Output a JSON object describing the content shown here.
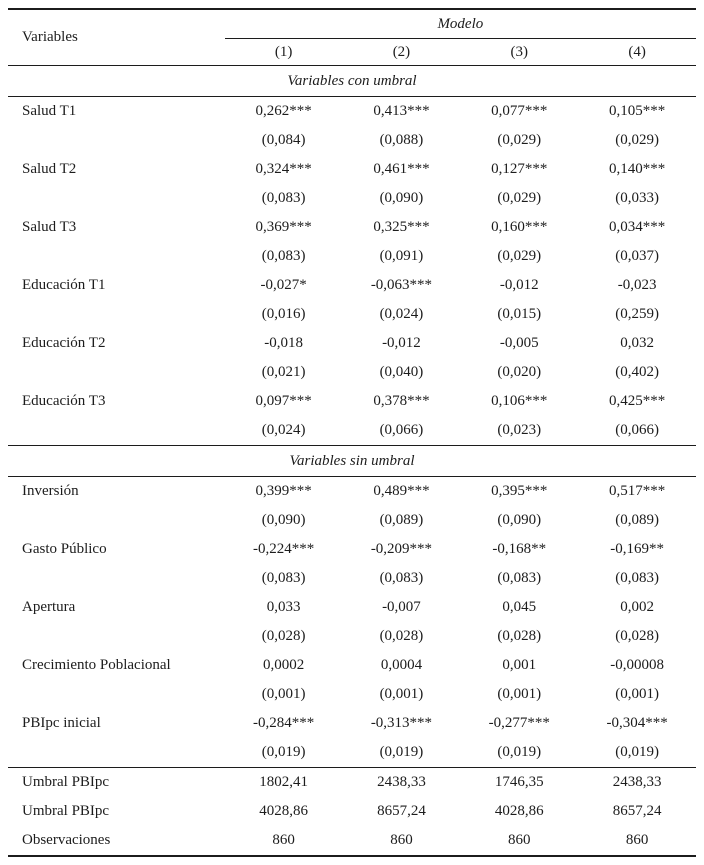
{
  "table": {
    "header": {
      "variables_label": "Variables",
      "modelo_label": "Modelo",
      "model_columns": [
        "(1)",
        "(2)",
        "(3)",
        "(4)"
      ]
    },
    "sections": [
      {
        "title": "Variables con umbral",
        "rows": [
          {
            "label": "Salud T1",
            "coef": [
              "0,262***",
              "0,413***",
              "0,077***",
              "0,105***"
            ],
            "se": [
              "(0,084)",
              "(0,088)",
              "(0,029)",
              "(0,029)"
            ]
          },
          {
            "label": "Salud T2",
            "coef": [
              "0,324***",
              "0,461***",
              "0,127***",
              "0,140***"
            ],
            "se": [
              "(0,083)",
              "(0,090)",
              "(0,029)",
              "(0,033)"
            ]
          },
          {
            "label": "Salud T3",
            "coef": [
              "0,369***",
              "0,325***",
              "0,160***",
              "0,034***"
            ],
            "se": [
              "(0,083)",
              "(0,091)",
              "(0,029)",
              "(0,037)"
            ]
          },
          {
            "label": "Educación T1",
            "coef": [
              "-0,027*",
              "-0,063***",
              "-0,012",
              "-0,023"
            ],
            "se": [
              "(0,016)",
              "(0,024)",
              "(0,015)",
              "(0,259)"
            ]
          },
          {
            "label": "Educación T2",
            "coef": [
              "-0,018",
              "-0,012",
              "-0,005",
              "0,032"
            ],
            "se": [
              "(0,021)",
              "(0,040)",
              "(0,020)",
              "(0,402)"
            ]
          },
          {
            "label": "Educación T3",
            "coef": [
              "0,097***",
              "0,378***",
              "0,106***",
              "0,425***"
            ],
            "se": [
              "(0,024)",
              "(0,066)",
              "(0,023)",
              "(0,066)"
            ]
          }
        ]
      },
      {
        "title": "Variables sin umbral",
        "rows": [
          {
            "label": "Inversión",
            "coef": [
              "0,399***",
              "0,489***",
              "0,395***",
              "0,517***"
            ],
            "se": [
              "(0,090)",
              "(0,089)",
              "(0,090)",
              "(0,089)"
            ]
          },
          {
            "label": "Gasto Público",
            "coef": [
              "-0,224***",
              "-0,209***",
              "-0,168**",
              "-0,169**"
            ],
            "se": [
              "(0,083)",
              "(0,083)",
              "(0,083)",
              "(0,083)"
            ]
          },
          {
            "label": "Apertura",
            "coef": [
              "0,033",
              "-0,007",
              "0,045",
              "0,002"
            ],
            "se": [
              "(0,028)",
              "(0,028)",
              "(0,028)",
              "(0,028)"
            ]
          },
          {
            "label": "Crecimiento Poblacional",
            "coef": [
              "0,0002",
              "0,0004",
              "0,001",
              "-0,00008"
            ],
            "se": [
              "(0,001)",
              "(0,001)",
              "(0,001)",
              "(0,001)"
            ]
          },
          {
            "label": "PBIpc inicial",
            "coef": [
              "-0,284***",
              "-0,313***",
              "-0,277***",
              "-0,304***"
            ],
            "se": [
              "(0,019)",
              "(0,019)",
              "(0,019)",
              "(0,019)"
            ]
          }
        ]
      }
    ],
    "footer_rows": [
      {
        "label": "Umbral PBIpc",
        "values": [
          "1802,41",
          "2438,33",
          "1746,35",
          "2438,33"
        ]
      },
      {
        "label": "Umbral PBIpc",
        "values": [
          "4028,86",
          "8657,24",
          "4028,86",
          "8657,24"
        ]
      },
      {
        "label": "Observaciones",
        "values": [
          "860",
          "860",
          "860",
          "860"
        ]
      }
    ]
  }
}
